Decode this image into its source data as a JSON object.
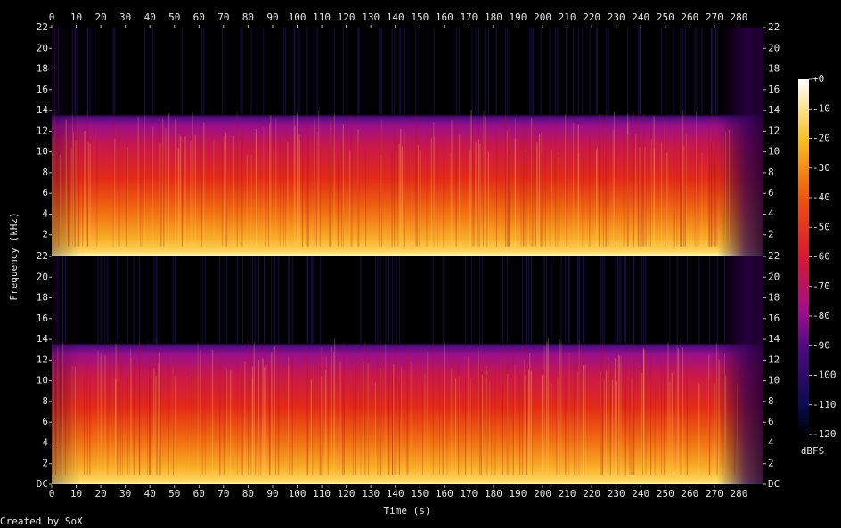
{
  "chart_data": {
    "type": "spectrogram",
    "xlabel": "Time (s)",
    "ylabel": "Frequency (kHz)",
    "xlim": [
      0,
      290
    ],
    "xticks": [
      0,
      10,
      20,
      30,
      40,
      50,
      60,
      70,
      80,
      90,
      100,
      110,
      120,
      130,
      140,
      150,
      160,
      170,
      180,
      190,
      200,
      210,
      220,
      230,
      240,
      250,
      260,
      270,
      280
    ],
    "channels": [
      {
        "ylim": [
          0,
          22
        ],
        "yticks": [
          2,
          4,
          6,
          8,
          10,
          12,
          14,
          16,
          18,
          20,
          22
        ]
      },
      {
        "ylim": [
          0,
          22
        ],
        "yticks": [
          {
            "value": 0,
            "label": "DC"
          },
          2,
          4,
          6,
          8,
          10,
          12,
          14,
          16,
          18,
          20,
          22
        ]
      }
    ],
    "colorbar": {
      "label": "dBFS",
      "lim": [
        -120,
        0
      ],
      "ticks": [
        {
          "value": 0,
          "label": "+0"
        },
        -10,
        -20,
        -30,
        -40,
        -50,
        -60,
        -70,
        -80,
        -90,
        -100,
        -110,
        -120
      ]
    }
  },
  "footer": "Created by SoX"
}
